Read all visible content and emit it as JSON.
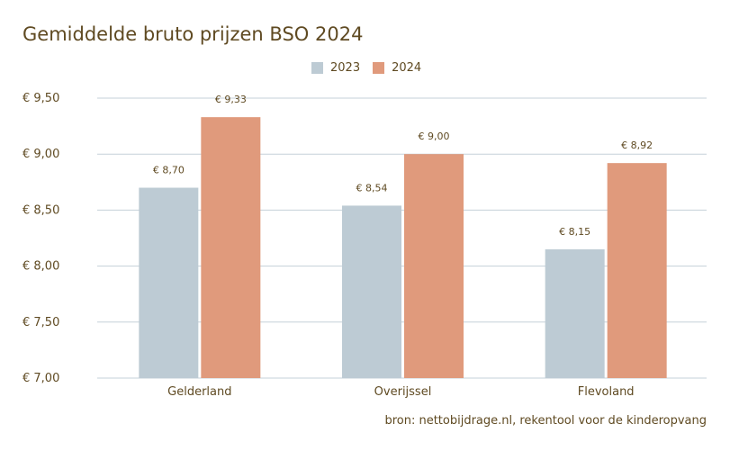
{
  "chart_data": {
    "type": "bar",
    "title": "Gemiddelde bruto prijzen BSO 2024",
    "categories": [
      "Gelderland",
      "Overijssel",
      "Flevoland"
    ],
    "series": [
      {
        "name": "2023",
        "color": "#bdcbd4",
        "values": [
          8.7,
          8.54,
          8.15
        ],
        "labels": [
          "€ 8,70",
          "€ 8,54",
          "€ 8,15"
        ]
      },
      {
        "name": "2024",
        "color": "#e09a7c",
        "values": [
          9.33,
          9.0,
          8.92
        ],
        "labels": [
          "€ 9,33",
          "€ 9,00",
          "€ 8,92"
        ]
      }
    ],
    "ylim": [
      7.0,
      9.5
    ],
    "yticks": [
      7.0,
      7.5,
      8.0,
      8.5,
      9.0,
      9.5
    ],
    "ytick_labels": [
      "€ 7,00",
      "€ 7,50",
      "€ 8,00",
      "€ 8,50",
      "€ 9,00",
      "€ 9,50"
    ],
    "grid": true,
    "legend": "top-center",
    "source": "bron: nettobijdrage.nl, rekentool voor de kinderopvang"
  }
}
